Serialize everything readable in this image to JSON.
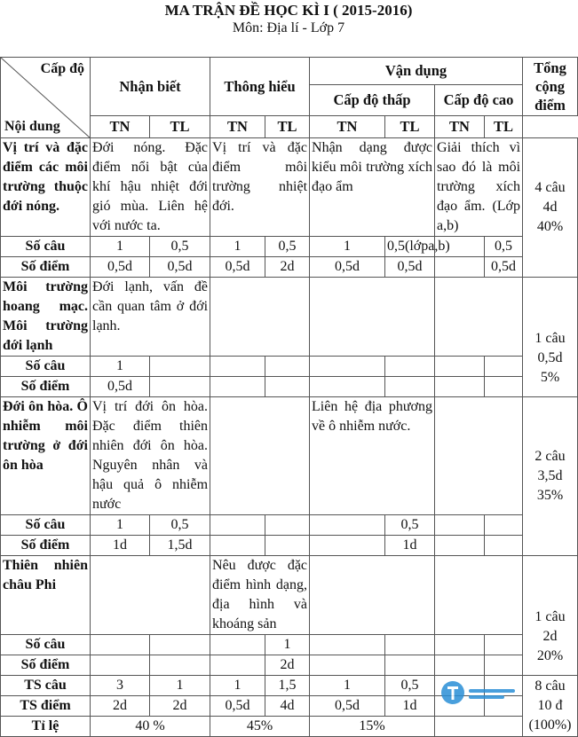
{
  "title": "MA TRẬN ĐỀ HỌC KÌ I ( 2015-2016)",
  "subtitle": "Môn: Địa lí - Lớp 7",
  "header": {
    "cap_do": "Cấp độ",
    "noi_dung": "Nội dung",
    "nhan_biet": "Nhận biết",
    "thong_hieu": "Thông hiểu",
    "van_dung": "Vận dụng",
    "cap_do_thap": "Cấp độ thấp",
    "cap_do_cao": "Cấp độ cao",
    "tong": "Tổng cộng điểm",
    "tn": "TN",
    "tl": "TL"
  },
  "row_labels": {
    "so_cau": "Số câu",
    "so_diem": "Số điểm",
    "ts_cau": "TS câu",
    "ts_diem": "TS điểm",
    "ti_le": "Tỉ lệ"
  },
  "sections": [
    {
      "topic": "Vị trí và đặc điểm các môi trường thuộc đới nóng.",
      "nb": "Đới nóng. Đặc điểm nổi bật của khí hậu nhiệt đới gió mùa. Liên hệ với nước ta.",
      "th": "Vị trí và đặc điểm môi trường nhiệt đới.",
      "vdt": "Nhận dạng được kiểu môi trường xích đạo ẩm",
      "vdc": "Giải thích vì sao đó là môi trường xích đạo ẩm. (Lớp a,b)",
      "so_cau": [
        "1",
        "0,5",
        "1",
        "0,5",
        "1",
        "0,5(lớpa,b)",
        "",
        "0,5"
      ],
      "so_diem": [
        "0,5d",
        "0,5d",
        "0,5d",
        "2d",
        "0,5d",
        "0,5d",
        "",
        "0,5d"
      ],
      "total": [
        "4 câu",
        "4d",
        "40%"
      ]
    },
    {
      "topic": "Môi trường hoang mạc. Môi trường đới lạnh",
      "nb": "Đới lạnh, vấn đề cần quan tâm ở đới lạnh.",
      "th": "",
      "vdt": "",
      "vdc": "",
      "so_cau": [
        "1",
        "",
        "",
        "",
        "",
        "",
        "",
        ""
      ],
      "so_diem": [
        "0,5d",
        "",
        "",
        "",
        "",
        "",
        "",
        ""
      ],
      "total": [
        "1 câu",
        "0,5d",
        "5%"
      ]
    },
    {
      "topic": "Đới ôn hòa. Ô nhiễm môi trường ở đới ôn hòa",
      "nb": "Vị trí đới ôn hòa. Đặc điểm thiên nhiên đới ôn hòa. Nguyên nhân và hậu quả ô nhiễm nước",
      "th": "",
      "vdt": "Liên hệ địa phương về ô nhiễm nước.",
      "vdc": "",
      "so_cau": [
        "1",
        "0,5",
        "",
        "",
        "",
        "0,5",
        "",
        ""
      ],
      "so_diem": [
        "1d",
        "1,5d",
        "",
        "",
        "",
        "1d",
        "",
        ""
      ],
      "total": [
        "2 câu",
        "3,5d",
        "35%"
      ]
    },
    {
      "topic": "Thiên nhiên châu Phi",
      "nb": "",
      "th": "Nêu được đặc điểm hình dạng, địa hình và khoáng sản",
      "vdt": "",
      "vdc": "",
      "so_cau": [
        "",
        "",
        "",
        "1",
        "",
        "",
        "",
        ""
      ],
      "so_diem": [
        "",
        "",
        "",
        "2d",
        "",
        "",
        "",
        ""
      ],
      "total": [
        "1 câu",
        "2d",
        "20%"
      ]
    }
  ],
  "summary": {
    "ts_cau": [
      "3",
      "1",
      "1",
      "1,5",
      "1",
      "0,5",
      "",
      ""
    ],
    "ts_diem": [
      "2d",
      "2d",
      "0,5d",
      "4d",
      "0,5d",
      "1d",
      "",
      ""
    ],
    "ti_le": [
      "40 %",
      "45%",
      "15%",
      ""
    ],
    "total": [
      "8 câu",
      "10 đ",
      "(100%)"
    ]
  },
  "watermark": "Taimienphi"
}
